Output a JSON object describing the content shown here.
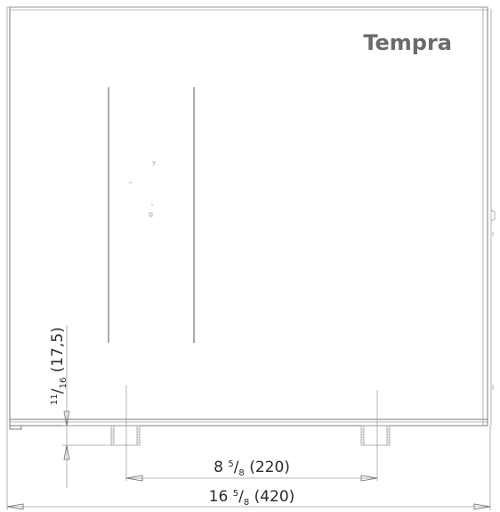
{
  "brand": {
    "name": "Tempra"
  },
  "dimensions": {
    "height_small": {
      "numerator": "11",
      "slash": "/",
      "denominator": "16",
      "metric": " (17,5)"
    },
    "spacing": {
      "whole": "8 ",
      "numerator": "5",
      "slash": "/",
      "denominator": "8",
      "metric": " (220)"
    },
    "width": {
      "whole": "16 ",
      "numerator": "5",
      "slash": "/",
      "denominator": "8",
      "metric": " (420)"
    }
  }
}
